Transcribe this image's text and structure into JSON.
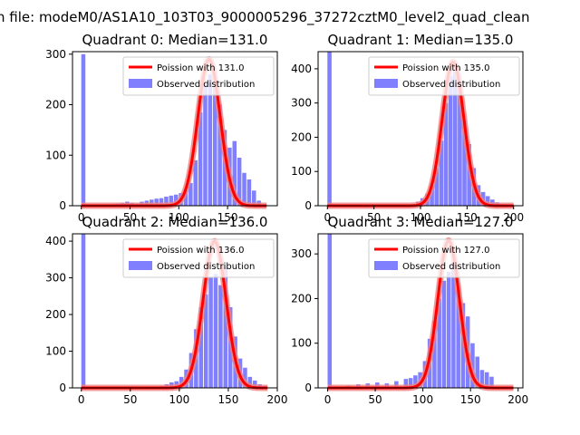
{
  "figure": {
    "suptitle": "n file: modeM0/AS1A10_103T03_9000005296_37272cztM0_level2_quad_clean"
  },
  "colors": {
    "hist": "#8080ff",
    "poisson": "#ff0000",
    "poisson_glow": "#f08080"
  },
  "chart_data": [
    {
      "type": "bar",
      "title": "Quadrant 0: Median=131.0",
      "legend": [
        "Poission with 131.0",
        "Observed distribution"
      ],
      "legend_position": "upper right",
      "xlim": [
        -9,
        201
      ],
      "ylim": [
        0,
        305
      ],
      "xticks": [
        0,
        50,
        100,
        150
      ],
      "yticks": [
        0,
        100,
        200,
        300
      ],
      "median": 131.0,
      "bin_width": 4.2,
      "hist": [
        [
          0,
          300
        ],
        [
          30,
          2
        ],
        [
          35,
          4
        ],
        [
          40,
          6
        ],
        [
          45,
          8
        ],
        [
          50,
          6
        ],
        [
          55,
          4
        ],
        [
          60,
          8
        ],
        [
          65,
          10
        ],
        [
          70,
          12
        ],
        [
          75,
          14
        ],
        [
          80,
          15
        ],
        [
          85,
          18
        ],
        [
          90,
          20
        ],
        [
          95,
          22
        ],
        [
          100,
          25
        ],
        [
          105,
          30
        ],
        [
          110,
          45
        ],
        [
          115,
          90
        ],
        [
          120,
          185
        ],
        [
          125,
          240
        ],
        [
          130,
          260
        ],
        [
          135,
          235
        ],
        [
          140,
          200
        ],
        [
          145,
          150
        ],
        [
          150,
          115
        ],
        [
          155,
          128
        ],
        [
          160,
          95
        ],
        [
          165,
          65
        ],
        [
          170,
          52
        ],
        [
          175,
          30
        ],
        [
          180,
          10
        ]
      ],
      "curve": {
        "mu": 131.0,
        "peak": 290,
        "x": [
          0,
          190
        ]
      }
    },
    {
      "type": "bar",
      "title": "Quadrant 1: Median=135.0",
      "legend": [
        "Poission with 135.0",
        "Observed distribution"
      ],
      "legend_position": "upper right",
      "xlim": [
        -10,
        210
      ],
      "ylim": [
        0,
        450
      ],
      "xticks": [
        0,
        50,
        100,
        150,
        200
      ],
      "yticks": [
        0,
        100,
        200,
        300,
        400
      ],
      "median": 135.0,
      "bin_width": 4.5,
      "hist": [
        [
          0,
          450
        ],
        [
          95,
          12
        ],
        [
          100,
          22
        ],
        [
          105,
          35
        ],
        [
          110,
          60
        ],
        [
          115,
          110
        ],
        [
          120,
          190
        ],
        [
          125,
          300
        ],
        [
          130,
          380
        ],
        [
          135,
          400
        ],
        [
          140,
          340
        ],
        [
          145,
          250
        ],
        [
          150,
          180
        ],
        [
          155,
          110
        ],
        [
          160,
          60
        ],
        [
          165,
          40
        ],
        [
          170,
          28
        ],
        [
          175,
          18
        ],
        [
          180,
          10
        ],
        [
          185,
          5
        ]
      ],
      "curve": {
        "mu": 135.0,
        "peak": 420,
        "x": [
          0,
          200
        ]
      }
    },
    {
      "type": "bar",
      "title": "Quadrant 2: Median=136.0",
      "legend": [
        "Poission with 136.0",
        "Observed distribution"
      ],
      "legend_position": "upper right",
      "xlim": [
        -9,
        200
      ],
      "ylim": [
        0,
        420
      ],
      "xticks": [
        0,
        50,
        100,
        150,
        200
      ],
      "yticks": [
        0,
        100,
        200,
        300,
        400
      ],
      "median": 136.0,
      "bin_width": 4.2,
      "hist": [
        [
          0,
          420
        ],
        [
          80,
          5
        ],
        [
          85,
          10
        ],
        [
          90,
          15
        ],
        [
          95,
          18
        ],
        [
          100,
          30
        ],
        [
          105,
          50
        ],
        [
          110,
          95
        ],
        [
          115,
          160
        ],
        [
          120,
          220
        ],
        [
          125,
          255
        ],
        [
          130,
          300
        ],
        [
          135,
          310
        ],
        [
          140,
          280
        ],
        [
          145,
          330
        ],
        [
          150,
          220
        ],
        [
          155,
          140
        ],
        [
          160,
          80
        ],
        [
          165,
          55
        ],
        [
          170,
          30
        ],
        [
          175,
          20
        ],
        [
          180,
          10
        ],
        [
          185,
          5
        ]
      ],
      "curve": {
        "mu": 136.0,
        "peak": 400,
        "x": [
          0,
          190
        ]
      }
    },
    {
      "type": "bar",
      "title": "Quadrant 3: Median=127.0",
      "legend": [
        "Poission with 127.0",
        "Observed distribution"
      ],
      "legend_position": "upper right",
      "xlim": [
        -10,
        205
      ],
      "ylim": [
        0,
        345
      ],
      "xticks": [
        0,
        50,
        100,
        150,
        200
      ],
      "yticks": [
        0,
        100,
        200,
        300
      ],
      "median": 127.0,
      "bin_width": 4.3,
      "hist": [
        [
          0,
          345
        ],
        [
          20,
          5
        ],
        [
          30,
          8
        ],
        [
          40,
          10
        ],
        [
          50,
          12
        ],
        [
          60,
          10
        ],
        [
          70,
          15
        ],
        [
          80,
          20
        ],
        [
          85,
          22
        ],
        [
          90,
          28
        ],
        [
          95,
          35
        ],
        [
          100,
          60
        ],
        [
          105,
          110
        ],
        [
          110,
          150
        ],
        [
          115,
          200
        ],
        [
          120,
          240
        ],
        [
          125,
          260
        ],
        [
          130,
          280
        ],
        [
          135,
          220
        ],
        [
          140,
          190
        ],
        [
          145,
          160
        ],
        [
          150,
          100
        ],
        [
          155,
          70
        ],
        [
          160,
          40
        ],
        [
          165,
          35
        ],
        [
          170,
          25
        ]
      ],
      "curve": {
        "mu": 127.0,
        "peak": 330,
        "x": [
          0,
          195
        ]
      }
    }
  ]
}
